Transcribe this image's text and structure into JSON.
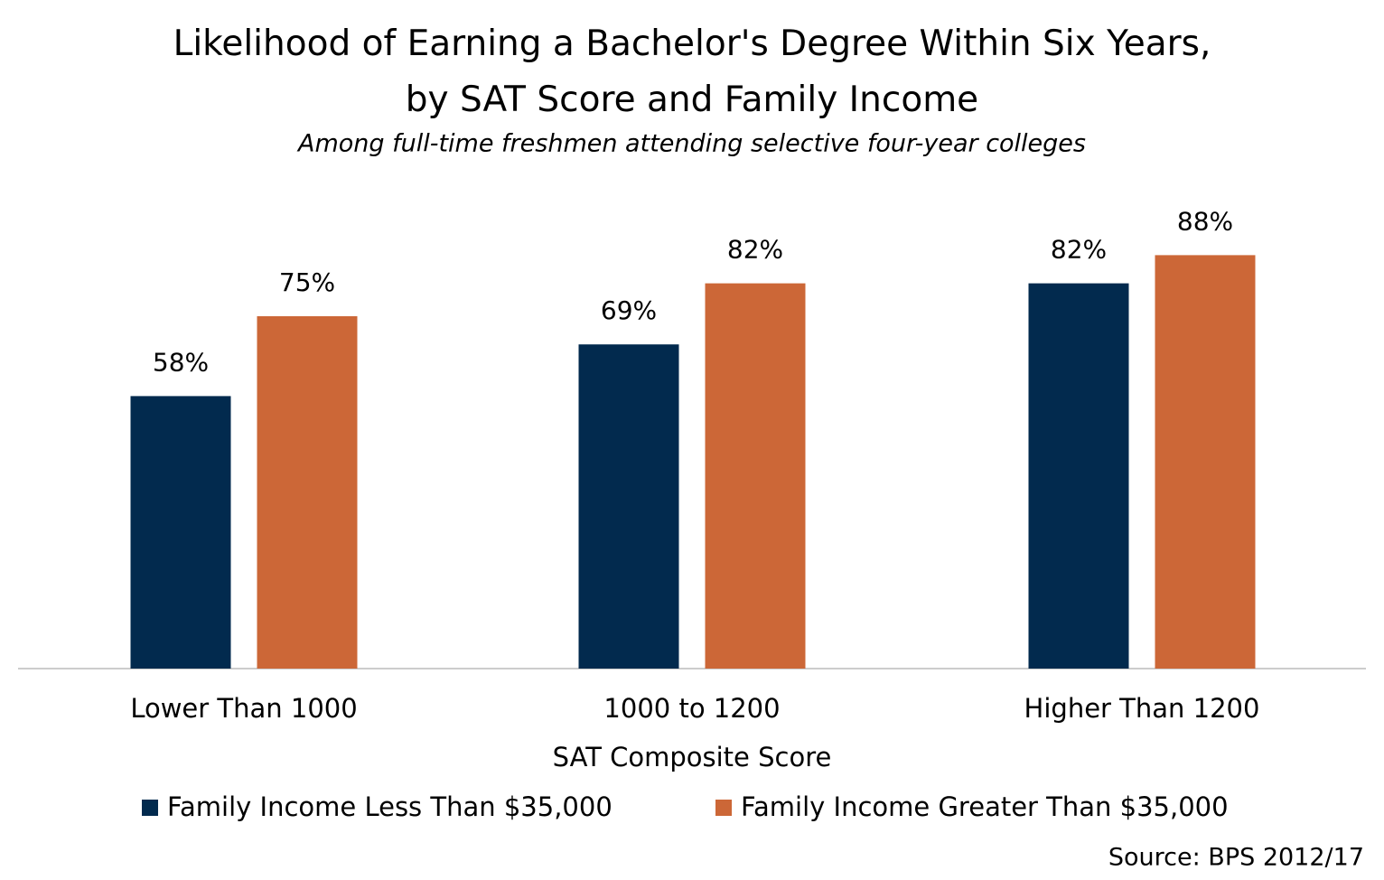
{
  "chart_data": {
    "type": "bar",
    "title": "Likelihood of Earning a Bachelor's Degree Within Six Years, by SAT Score and Family Income",
    "subtitle": "Among full-time freshmen attending selective four-year colleges",
    "x_label": "SAT Composite Score",
    "source": "Source: BPS 2012/17",
    "categories": [
      "Lower Than 1000",
      "1000 to 1200",
      "Higher Than 1200"
    ],
    "series": [
      {
        "name": "Family Income Less Than $35,000",
        "color": "#022a4e",
        "values": [
          58,
          69,
          82
        ],
        "value_labels": [
          "58%",
          "69%",
          "82%"
        ]
      },
      {
        "name": "Family Income Greater Than $35,000",
        "color": "#cc6737",
        "values": [
          75,
          82,
          88
        ],
        "value_labels": [
          "75%",
          "82%",
          "88%"
        ]
      }
    ],
    "legend": "bottom"
  }
}
